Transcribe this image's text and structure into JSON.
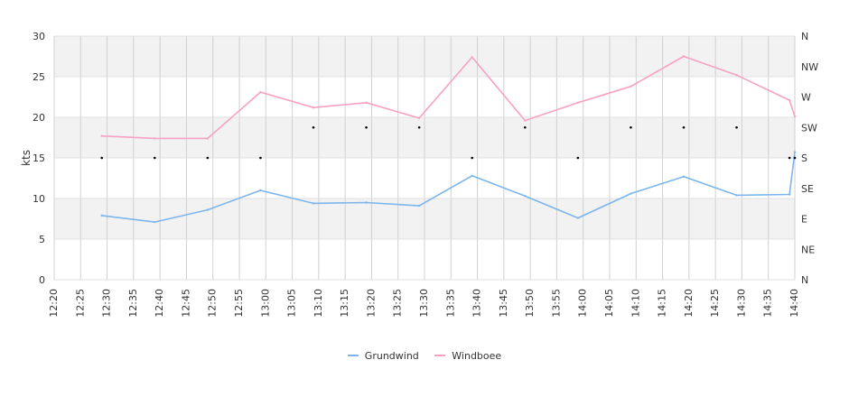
{
  "chart_data": {
    "type": "line",
    "ylabel": "kts",
    "ylim": [
      0,
      30
    ],
    "yticks": [
      0,
      5,
      10,
      15,
      20,
      25,
      30
    ],
    "y2ticks": [
      "N",
      "NE",
      "E",
      "SE",
      "S",
      "SW",
      "W",
      "NW",
      "N"
    ],
    "x_range": [
      "12:20",
      "14:40"
    ],
    "xticks": [
      "12:20",
      "12:25",
      "12:30",
      "12:35",
      "12:40",
      "12:45",
      "12:50",
      "12:55",
      "13:00",
      "13:05",
      "13:10",
      "13:15",
      "13:20",
      "13:25",
      "13:30",
      "13:35",
      "13:40",
      "13:45",
      "13:50",
      "13:55",
      "14:00",
      "14:05",
      "14:10",
      "14:15",
      "14:20",
      "14:25",
      "14:30",
      "14:35",
      "14:40"
    ],
    "grid": true,
    "legend_position": "bottom-center",
    "series": [
      {
        "name": "Grundwind",
        "color": "#7cb5ec",
        "x": [
          "12:29",
          "12:39",
          "12:49",
          "12:59",
          "13:09",
          "13:19",
          "13:29",
          "13:39",
          "13:49",
          "13:59",
          "14:09",
          "14:19",
          "14:29",
          "14:39",
          "14:40"
        ],
        "values": [
          7.9,
          7.1,
          8.6,
          11.0,
          9.4,
          9.5,
          9.1,
          12.8,
          10.3,
          7.6,
          10.6,
          12.7,
          10.4,
          10.5,
          15.7
        ]
      },
      {
        "name": "Windboee",
        "color": "#f7a1c4",
        "x": [
          "12:29",
          "12:39",
          "12:49",
          "12:59",
          "13:09",
          "13:19",
          "13:29",
          "13:39",
          "13:49",
          "13:59",
          "14:09",
          "14:19",
          "14:29",
          "14:39",
          "14:40"
        ],
        "values": [
          17.7,
          17.4,
          17.4,
          23.1,
          21.2,
          21.8,
          19.9,
          27.4,
          19.6,
          21.8,
          23.8,
          27.5,
          25.2,
          22.1,
          20.1
        ]
      }
    ],
    "direction": {
      "x": [
        "12:29",
        "12:39",
        "12:49",
        "12:59",
        "13:09",
        "13:19",
        "13:29",
        "13:39",
        "13:49",
        "13:59",
        "14:09",
        "14:19",
        "14:29",
        "14:39",
        "14:40"
      ],
      "values": [
        "S",
        "S",
        "S",
        "S",
        "SW",
        "SW",
        "SW",
        "S",
        "SW",
        "S",
        "SW",
        "SW",
        "SW",
        "S",
        "S"
      ]
    }
  }
}
